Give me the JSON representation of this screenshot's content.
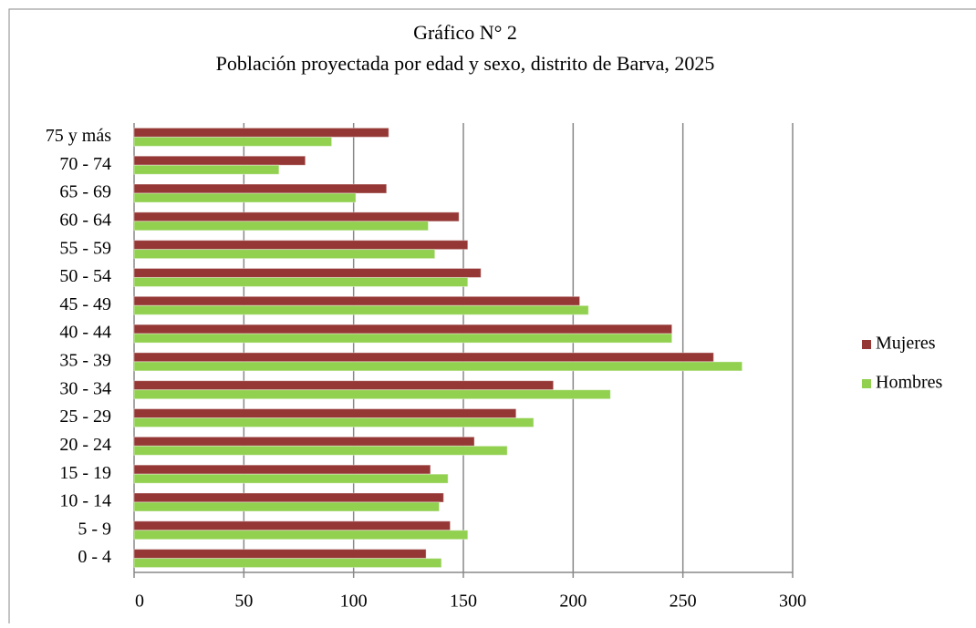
{
  "chart_data": {
    "type": "hbar",
    "title": "Gráfico N° 2",
    "subtitle": "Población proyectada por edad y sexo, distrito de Barva, 2025",
    "categories": [
      "0 - 4",
      "5 - 9",
      "10 - 14",
      "15 - 19",
      "20 - 24",
      "25 - 29",
      "30 - 34",
      "35 - 39",
      "40 - 44",
      "45 - 49",
      "50 - 54",
      "55 - 59",
      "60 - 64",
      "65 - 69",
      "70 - 74",
      "75 y más"
    ],
    "series": [
      {
        "name": "Mujeres",
        "color": "#953735",
        "values": [
          133,
          144,
          141,
          135,
          155,
          174,
          191,
          264,
          245,
          203,
          158,
          152,
          148,
          115,
          78,
          116
        ]
      },
      {
        "name": "Hombres",
        "color": "#92d050",
        "values": [
          140,
          152,
          139,
          143,
          170,
          182,
          217,
          277,
          245,
          207,
          152,
          137,
          134,
          101,
          66,
          90
        ]
      }
    ],
    "xlim": [
      0,
      300
    ],
    "xticks": [
      0,
      50,
      100,
      150,
      200,
      250,
      300
    ],
    "grid": true,
    "legend": "right"
  }
}
